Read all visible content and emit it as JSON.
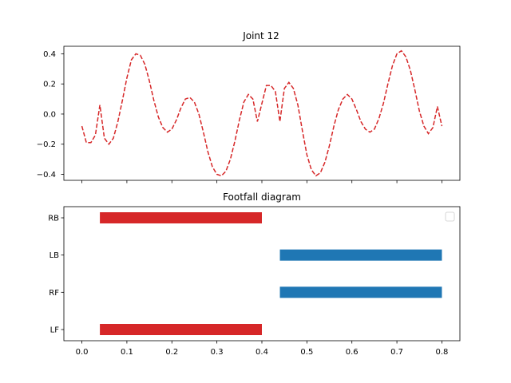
{
  "chart_data": [
    {
      "type": "line",
      "title": "Joint 12",
      "xlabel": "",
      "ylabel": "",
      "xlim": [
        -0.04,
        0.84
      ],
      "ylim": [
        -0.44,
        0.45
      ],
      "x_ticks": [
        0.0,
        0.1,
        0.2,
        0.3,
        0.4,
        0.5,
        0.6,
        0.7,
        0.8
      ],
      "x_ticklabels_shown": false,
      "y_ticks": [
        -0.4,
        -0.2,
        0.0,
        0.2,
        0.4
      ],
      "y_ticklabels": [
        "−0.4",
        "−0.2",
        "0.0",
        "0.2",
        "0.4"
      ],
      "grid": false,
      "series": [
        {
          "color": "#d62728",
          "linestyle": "dashed",
          "points": [
            [
              0.0,
              -0.08
            ],
            [
              0.01,
              -0.19
            ],
            [
              0.02,
              -0.19
            ],
            [
              0.03,
              -0.14
            ],
            [
              0.04,
              0.06
            ],
            [
              0.05,
              -0.16
            ],
            [
              0.06,
              -0.2
            ],
            [
              0.07,
              -0.16
            ],
            [
              0.08,
              -0.05
            ],
            [
              0.09,
              0.09
            ],
            [
              0.1,
              0.24
            ],
            [
              0.11,
              0.36
            ],
            [
              0.12,
              0.4
            ],
            [
              0.13,
              0.39
            ],
            [
              0.14,
              0.33
            ],
            [
              0.15,
              0.22
            ],
            [
              0.16,
              0.09
            ],
            [
              0.17,
              -0.02
            ],
            [
              0.18,
              -0.09
            ],
            [
              0.19,
              -0.12
            ],
            [
              0.2,
              -0.1
            ],
            [
              0.21,
              -0.04
            ],
            [
              0.22,
              0.04
            ],
            [
              0.23,
              0.1
            ],
            [
              0.24,
              0.11
            ],
            [
              0.25,
              0.08
            ],
            [
              0.26,
              0.0
            ],
            [
              0.27,
              -0.12
            ],
            [
              0.28,
              -0.25
            ],
            [
              0.29,
              -0.35
            ],
            [
              0.3,
              -0.4
            ],
            [
              0.31,
              -0.41
            ],
            [
              0.32,
              -0.38
            ],
            [
              0.33,
              -0.3
            ],
            [
              0.34,
              -0.18
            ],
            [
              0.35,
              -0.04
            ],
            [
              0.36,
              0.08
            ],
            [
              0.37,
              0.13
            ],
            [
              0.38,
              0.1
            ],
            [
              0.39,
              -0.05
            ],
            [
              0.4,
              0.07
            ],
            [
              0.41,
              0.19
            ],
            [
              0.42,
              0.19
            ],
            [
              0.43,
              0.15
            ],
            [
              0.44,
              -0.05
            ],
            [
              0.45,
              0.17
            ],
            [
              0.46,
              0.21
            ],
            [
              0.47,
              0.17
            ],
            [
              0.48,
              0.06
            ],
            [
              0.49,
              -0.11
            ],
            [
              0.5,
              -0.27
            ],
            [
              0.51,
              -0.37
            ],
            [
              0.52,
              -0.41
            ],
            [
              0.53,
              -0.39
            ],
            [
              0.54,
              -0.32
            ],
            [
              0.55,
              -0.21
            ],
            [
              0.56,
              -0.08
            ],
            [
              0.57,
              0.03
            ],
            [
              0.58,
              0.1
            ],
            [
              0.59,
              0.13
            ],
            [
              0.6,
              0.1
            ],
            [
              0.61,
              0.03
            ],
            [
              0.62,
              -0.05
            ],
            [
              0.63,
              -0.1
            ],
            [
              0.64,
              -0.12
            ],
            [
              0.65,
              -0.1
            ],
            [
              0.66,
              -0.03
            ],
            [
              0.67,
              0.07
            ],
            [
              0.68,
              0.2
            ],
            [
              0.69,
              0.32
            ],
            [
              0.7,
              0.4
            ],
            [
              0.71,
              0.42
            ],
            [
              0.72,
              0.38
            ],
            [
              0.73,
              0.29
            ],
            [
              0.74,
              0.16
            ],
            [
              0.75,
              0.02
            ],
            [
              0.76,
              -0.08
            ],
            [
              0.77,
              -0.13
            ],
            [
              0.78,
              -0.09
            ],
            [
              0.79,
              0.05
            ],
            [
              0.8,
              -0.08
            ]
          ]
        }
      ]
    },
    {
      "type": "bar",
      "orientation": "horizontal",
      "title": "Footfall diagram",
      "xlabel": "",
      "ylabel": "",
      "xlim": [
        -0.04,
        0.84
      ],
      "x_ticks": [
        0.0,
        0.1,
        0.2,
        0.3,
        0.4,
        0.5,
        0.6,
        0.7,
        0.8
      ],
      "x_ticklabels": [
        "0.0",
        "0.1",
        "0.2",
        "0.3",
        "0.4",
        "0.5",
        "0.6",
        "0.7",
        "0.8"
      ],
      "categories": [
        "LF",
        "RF",
        "LB",
        "RB"
      ],
      "legend": {
        "placement": "upper-right",
        "entries": []
      },
      "grid": false,
      "bars": [
        {
          "category": "LF",
          "start": 0.04,
          "end": 0.4,
          "color": "#d62728"
        },
        {
          "category": "RF",
          "start": 0.44,
          "end": 0.8,
          "color": "#1f77b4"
        },
        {
          "category": "LB",
          "start": 0.44,
          "end": 0.8,
          "color": "#1f77b4"
        },
        {
          "category": "RB",
          "start": 0.04,
          "end": 0.4,
          "color": "#d62728"
        }
      ]
    }
  ]
}
